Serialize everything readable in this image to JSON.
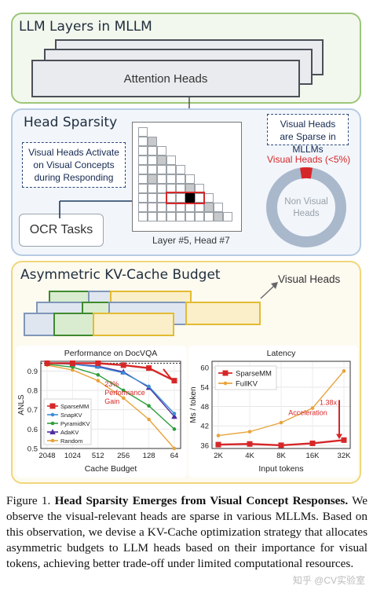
{
  "figure": {
    "panel1": {
      "title": "LLM Layers in MLLM",
      "card_label": "Attention Heads"
    },
    "panel2": {
      "title": "Head Sparsity",
      "note_left": "Visual Heads Activate on Visual Concepts during Responding",
      "ocr_label": "OCR Tasks",
      "grid_caption": "Layer #5, Head #7",
      "note_right": "Visual Heads are Sparse in MLLMs",
      "donut_red_label": "Visual Heads (<5%)",
      "donut_center_label": "Non Visual Heads",
      "visual_share": 0.05
    },
    "panel3": {
      "title": "Asymmetric KV-Cache Budget",
      "visual_heads_label": "Visual Heads"
    },
    "colors": {
      "green_panel": "#8fbf6a",
      "blue_panel": "#b7cbe2",
      "yellow_panel": "#f0d77a",
      "red": "#d62728",
      "gold": "#e8a33a"
    }
  },
  "chart_data": [
    {
      "type": "line",
      "title": "Performance on DocVQA",
      "xlabel": "Cache Budget",
      "ylabel": "ANLS",
      "categories": [
        "2048",
        "1024",
        "512",
        "256",
        "128",
        "64"
      ],
      "yticks": [
        "0.5",
        "0.6",
        "0.7",
        "0.8",
        "0.9"
      ],
      "ylim": [
        0.5,
        0.95
      ],
      "annotation": "23% Performance Gain",
      "series": [
        {
          "name": "SparseMM",
          "color": "#d62728",
          "marker": "square",
          "values": [
            0.94,
            0.94,
            0.94,
            0.93,
            0.915,
            0.85
          ]
        },
        {
          "name": "SnapKV",
          "color": "#3a8fd6",
          "marker": "dot",
          "values": [
            0.94,
            0.935,
            0.92,
            0.89,
            0.82,
            0.68
          ]
        },
        {
          "name": "PyramidKV",
          "color": "#2e9e3a",
          "marker": "dot",
          "values": [
            0.935,
            0.92,
            0.88,
            0.8,
            0.72,
            0.6
          ]
        },
        {
          "name": "AdaKV",
          "color": "#4b2ca0",
          "marker": "triangle",
          "values": [
            0.94,
            0.935,
            0.925,
            0.895,
            0.815,
            0.665
          ]
        },
        {
          "name": "Random",
          "color": "#e8a33a",
          "marker": "dot",
          "values": [
            0.93,
            0.905,
            0.85,
            0.76,
            0.65,
            0.5
          ]
        }
      ],
      "reference_line": 0.94,
      "legend": "lower-left"
    },
    {
      "type": "line",
      "title": "Latency",
      "xlabel": "Input tokens",
      "ylabel": "Ms / token",
      "categories": [
        "2K",
        "4K",
        "8K",
        "16K",
        "32K"
      ],
      "yticks": [
        "36",
        "42",
        "48",
        "54",
        "60"
      ],
      "ylim": [
        35,
        62
      ],
      "annotation": "1.38x Acceleration",
      "series": [
        {
          "name": "SparseMM",
          "color": "#d62728",
          "marker": "square",
          "values": [
            36.2,
            36.4,
            36.0,
            36.6,
            37.6
          ]
        },
        {
          "name": "FullKV",
          "color": "#e8a33a",
          "marker": "dot",
          "values": [
            39.0,
            40.2,
            43.0,
            47.5,
            59.0
          ]
        }
      ],
      "legend": "top-left"
    }
  ],
  "caption": {
    "label": "Figure 1.",
    "bold": "Head Sparsity Emerges from Visual Concept Responses.",
    "text": "We observe the visual-relevant heads are sparse in various MLLMs. Based on this observation, we devise a KV-Cache optimization strategy that allocates asymmetric budgets to LLM heads based on their importance for visual tokens, achieving better trade-off under limited computational resources."
  },
  "watermark": "知乎 @CV实验室"
}
